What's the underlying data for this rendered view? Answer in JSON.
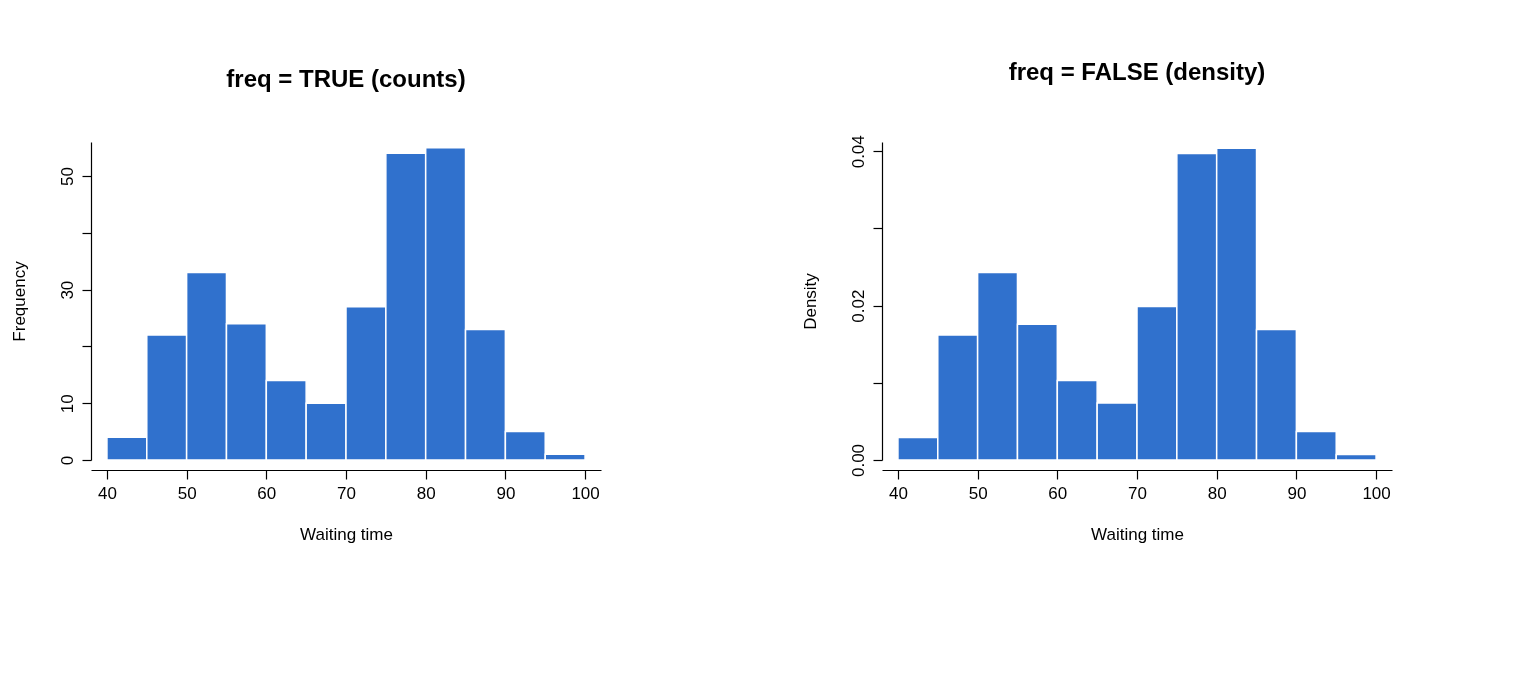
{
  "chart_data": [
    {
      "type": "histogram",
      "title": "freq = TRUE (counts)",
      "xlabel": "Waiting time",
      "ylabel": "Frequency",
      "bins": [
        40,
        45,
        50,
        55,
        60,
        65,
        70,
        75,
        80,
        85,
        90,
        95,
        100
      ],
      "values": [
        4,
        22,
        33,
        24,
        14,
        10,
        27,
        54,
        55,
        23,
        5,
        1
      ],
      "color": "#3071cd",
      "xlim": [
        38,
        102
      ],
      "xticks": [
        40,
        50,
        60,
        70,
        80,
        90,
        100
      ],
      "ylim": [
        0,
        56
      ],
      "yticks": [
        0,
        10,
        {
          "value": 20,
          "label": null
        },
        30,
        {
          "value": 40,
          "label": null
        },
        50
      ]
    },
    {
      "type": "histogram",
      "title": "freq = FALSE (density)",
      "xlabel": "Waiting time",
      "ylabel": "Density",
      "bins": [
        40,
        45,
        50,
        55,
        60,
        65,
        70,
        75,
        80,
        85,
        90,
        95,
        100
      ],
      "values": [
        0.0029,
        0.0162,
        0.0243,
        0.0176,
        0.0103,
        0.0074,
        0.0199,
        0.0397,
        0.0404,
        0.0169,
        0.0037,
        0.0007
      ],
      "color": "#3071cd",
      "xlim": [
        38,
        102
      ],
      "xticks": [
        40,
        50,
        60,
        70,
        80,
        90,
        100
      ],
      "ylim": [
        0,
        0.0412
      ],
      "yticks": [
        {
          "value": 0,
          "label": "0.00"
        },
        {
          "value": 0.01,
          "label": null
        },
        {
          "value": 0.02,
          "label": "0.02"
        },
        {
          "value": 0.03,
          "label": null
        },
        {
          "value": 0.04,
          "label": "0.04"
        }
      ]
    }
  ]
}
